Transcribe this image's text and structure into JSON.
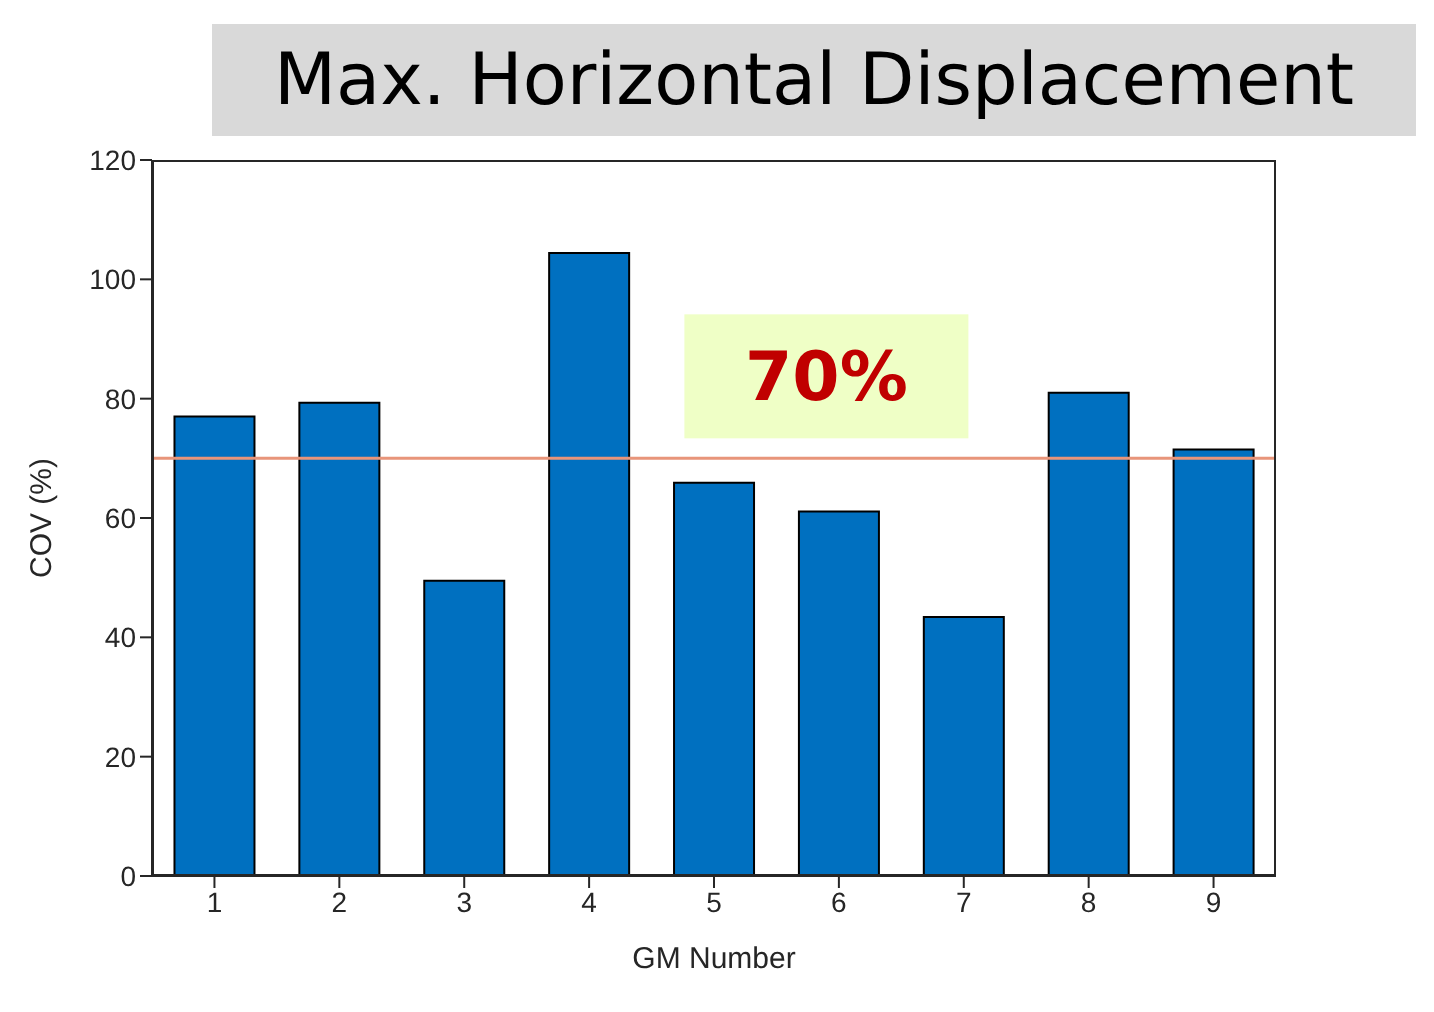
{
  "chart_data": {
    "type": "bar",
    "title": "Max. Horizontal Displacement",
    "xlabel": "GM Number",
    "ylabel": "COV (%)",
    "categories": [
      "1",
      "2",
      "3",
      "4",
      "5",
      "6",
      "7",
      "8",
      "9"
    ],
    "values": [
      77,
      79.3,
      49.5,
      104.4,
      65.9,
      61.1,
      43.4,
      81,
      71.5
    ],
    "color": "#0070c0",
    "ylim": [
      0,
      120
    ],
    "yticks": [
      0,
      20,
      40,
      60,
      80,
      100,
      120
    ],
    "grid": false,
    "ref_lines": [
      {
        "axis": "y",
        "value": 70,
        "label": "70%",
        "color": "#e8957a"
      }
    ]
  }
}
